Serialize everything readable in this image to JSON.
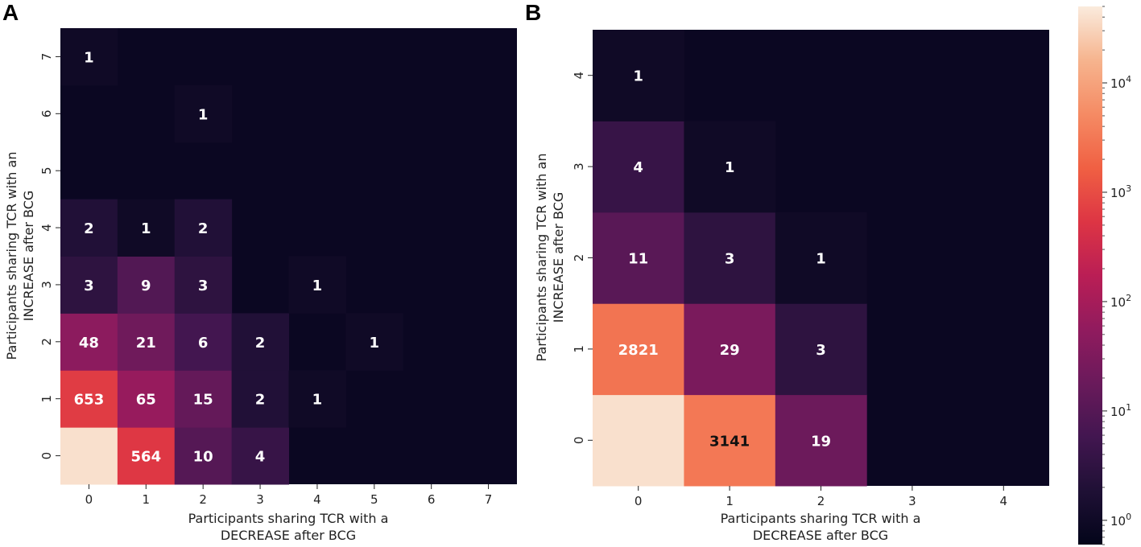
{
  "chart_data": [
    {
      "panel": "A",
      "type": "heatmap",
      "scale": "log",
      "xlabel": [
        "Participants sharing TCR with a",
        "DECREASE after BCG"
      ],
      "ylabel": [
        "Participants sharing TCR with an",
        "INCREASE after BCG"
      ],
      "x_ticks": [
        "0",
        "1",
        "2",
        "3",
        "4",
        "5",
        "6",
        "7"
      ],
      "y_ticks": [
        "0",
        "1",
        "2",
        "3",
        "4",
        "5",
        "6",
        "7"
      ],
      "cells": [
        {
          "x": 0,
          "y": 0,
          "value": 40000,
          "label": ""
        },
        {
          "x": 1,
          "y": 0,
          "value": 564,
          "label": "564"
        },
        {
          "x": 2,
          "y": 0,
          "value": 10,
          "label": "10"
        },
        {
          "x": 3,
          "y": 0,
          "value": 4,
          "label": "4"
        },
        {
          "x": 0,
          "y": 1,
          "value": 653,
          "label": "653"
        },
        {
          "x": 1,
          "y": 1,
          "value": 65,
          "label": "65"
        },
        {
          "x": 2,
          "y": 1,
          "value": 15,
          "label": "15"
        },
        {
          "x": 3,
          "y": 1,
          "value": 2,
          "label": "2"
        },
        {
          "x": 4,
          "y": 1,
          "value": 1,
          "label": "1"
        },
        {
          "x": 0,
          "y": 2,
          "value": 48,
          "label": "48"
        },
        {
          "x": 1,
          "y": 2,
          "value": 21,
          "label": "21"
        },
        {
          "x": 2,
          "y": 2,
          "value": 6,
          "label": "6"
        },
        {
          "x": 3,
          "y": 2,
          "value": 2,
          "label": "2"
        },
        {
          "x": 5,
          "y": 2,
          "value": 1,
          "label": "1"
        },
        {
          "x": 0,
          "y": 3,
          "value": 3,
          "label": "3"
        },
        {
          "x": 1,
          "y": 3,
          "value": 9,
          "label": "9"
        },
        {
          "x": 2,
          "y": 3,
          "value": 3,
          "label": "3"
        },
        {
          "x": 4,
          "y": 3,
          "value": 1,
          "label": "1"
        },
        {
          "x": 0,
          "y": 4,
          "value": 2,
          "label": "2"
        },
        {
          "x": 1,
          "y": 4,
          "value": 1,
          "label": "1"
        },
        {
          "x": 2,
          "y": 4,
          "value": 2,
          "label": "2"
        },
        {
          "x": 2,
          "y": 6,
          "value": 1,
          "label": "1"
        },
        {
          "x": 0,
          "y": 7,
          "value": 1,
          "label": "1"
        }
      ]
    },
    {
      "panel": "B",
      "type": "heatmap",
      "scale": "log",
      "xlabel": [
        "Participants sharing TCR with a",
        "DECREASE after BCG"
      ],
      "ylabel": [
        "Participants sharing TCR with an",
        "INCREASE after BCG"
      ],
      "x_ticks": [
        "0",
        "1",
        "2",
        "3",
        "4"
      ],
      "y_ticks": [
        "0",
        "1",
        "2",
        "3",
        "4"
      ],
      "cells": [
        {
          "x": 0,
          "y": 0,
          "value": 40000,
          "label": ""
        },
        {
          "x": 1,
          "y": 0,
          "value": 3141,
          "label": "3141"
        },
        {
          "x": 2,
          "y": 0,
          "value": 19,
          "label": "19"
        },
        {
          "x": 0,
          "y": 1,
          "value": 2821,
          "label": "2821"
        },
        {
          "x": 1,
          "y": 1,
          "value": 29,
          "label": "29"
        },
        {
          "x": 2,
          "y": 1,
          "value": 3,
          "label": "3"
        },
        {
          "x": 0,
          "y": 2,
          "value": 11,
          "label": "11"
        },
        {
          "x": 1,
          "y": 2,
          "value": 3,
          "label": "3"
        },
        {
          "x": 2,
          "y": 2,
          "value": 1,
          "label": "1"
        },
        {
          "x": 0,
          "y": 3,
          "value": 4,
          "label": "4"
        },
        {
          "x": 1,
          "y": 3,
          "value": 1,
          "label": "1"
        },
        {
          "x": 0,
          "y": 4,
          "value": 1,
          "label": "1"
        }
      ],
      "colorbar": {
        "scale": "log",
        "range": [
          0.6,
          50000
        ],
        "ticks": [
          {
            "value": 1,
            "label": "10^0"
          },
          {
            "value": 10,
            "label": "10^1"
          },
          {
            "value": 100,
            "label": "10^2"
          },
          {
            "value": 1000,
            "label": "10^3"
          },
          {
            "value": 10000,
            "label": "10^4"
          }
        ]
      }
    }
  ],
  "colors": {
    "background": "#ffffff",
    "empty": "#0b0722",
    "colormap": [
      "#03051a",
      "#1f1035",
      "#421650",
      "#6a1a5b",
      "#911b5e",
      "#ba1e55",
      "#dd3544",
      "#f06043",
      "#f58b64",
      "#f6b48e",
      "#faebdd"
    ]
  }
}
